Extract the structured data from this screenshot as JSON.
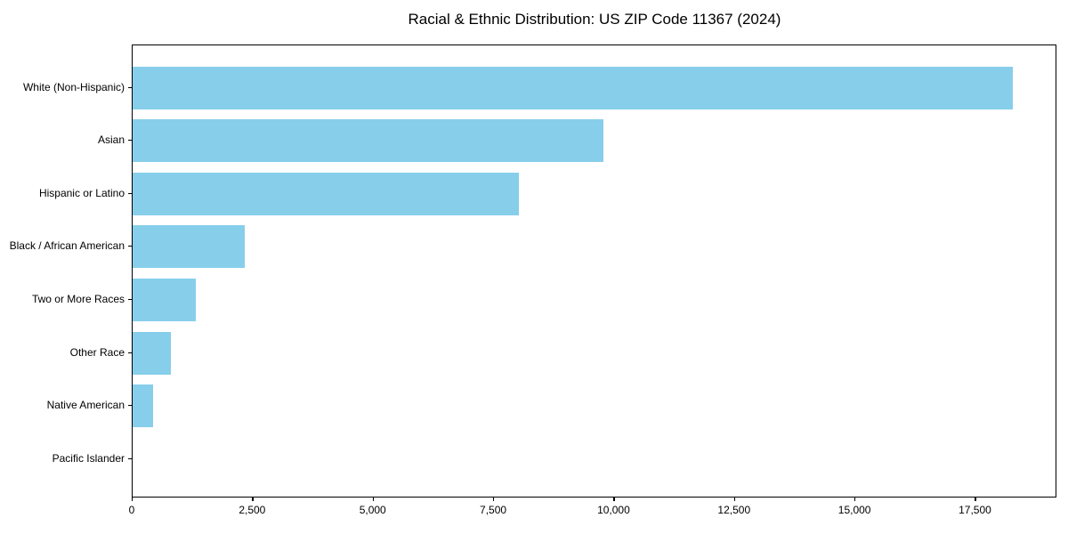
{
  "chart_data": {
    "type": "bar",
    "orientation": "horizontal",
    "title": "Racial & Ethnic Distribution: US ZIP Code 11367 (2024)",
    "categories": [
      "White (Non-Hispanic)",
      "Asian",
      "Hispanic or Latino",
      "Black / African American",
      "Two or More Races",
      "Other Race",
      "Native American",
      "Pacific Islander"
    ],
    "values": [
      18270,
      9770,
      8020,
      2320,
      1320,
      795,
      430,
      0
    ],
    "xlabel": "",
    "ylabel": "",
    "xlim": [
      0,
      19190
    ],
    "x_ticks": [
      0,
      2500,
      5000,
      7500,
      10000,
      12500,
      15000,
      17500
    ],
    "x_tick_labels": [
      "0",
      "2,500",
      "5,000",
      "7,500",
      "10,000",
      "12,500",
      "15,000",
      "17,500"
    ],
    "grid": false,
    "legend": "none",
    "bar_color": "#87CEEB",
    "spine_color": "#000000",
    "background_color": "#ffffff"
  }
}
